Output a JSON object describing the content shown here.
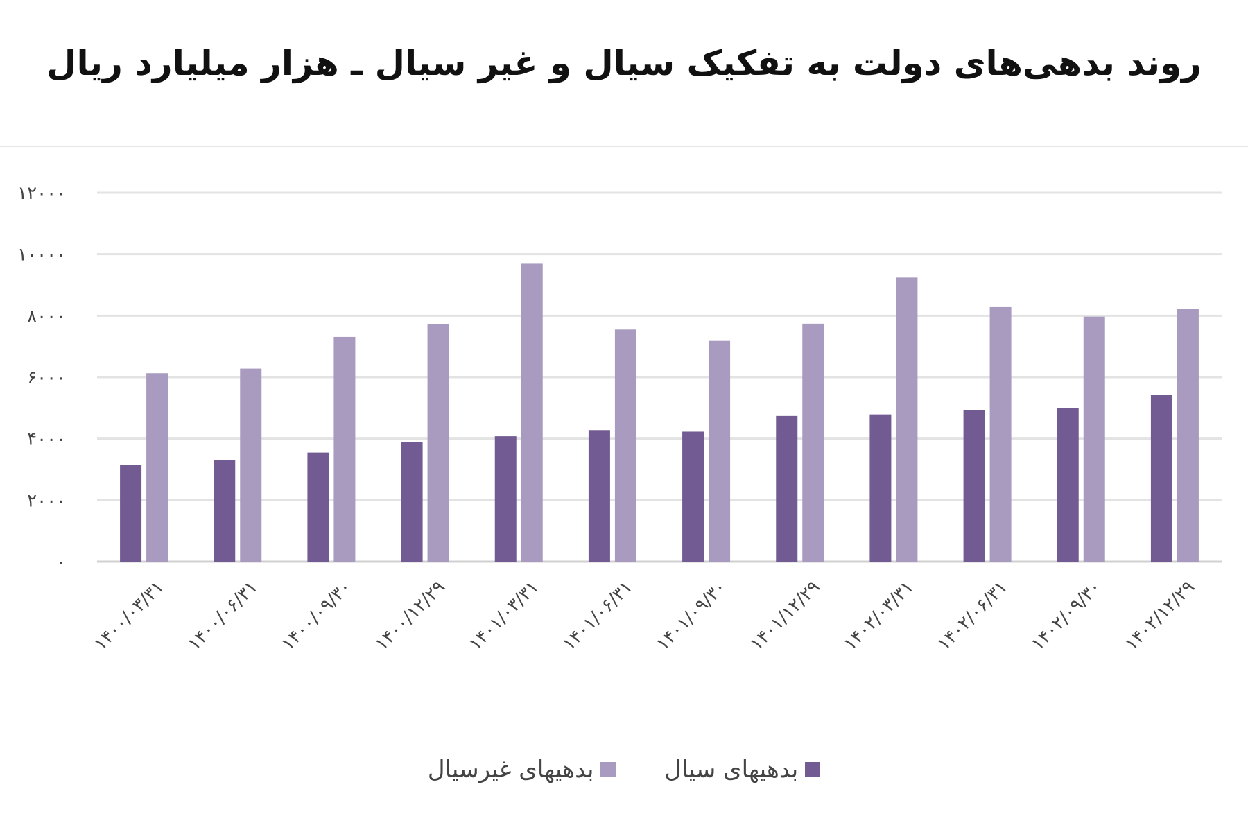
{
  "chart_data": {
    "type": "bar",
    "title": "روند بدهی‌های دولت به تفکیک سیال و غیر سیال ـ هزار میلیارد ریال",
    "categories": [
      "۱۴۰۰/۰۳/۳۱",
      "۱۴۰۰/۰۶/۳۱",
      "۱۴۰۰/۰۹/۳۰",
      "۱۴۰۰/۱۲/۲۹",
      "۱۴۰۱/۰۳/۳۱",
      "۱۴۰۱/۰۶/۳۱",
      "۱۴۰۱/۰۹/۳۰",
      "۱۴۰۱/۱۲/۲۹",
      "۱۴۰۲/۰۳/۳۱",
      "۱۴۰۲/۰۶/۳۱",
      "۱۴۰۲/۰۹/۳۰",
      "۱۴۰۲/۱۲/۲۹"
    ],
    "series": [
      {
        "name": "بدهیهای سیال",
        "color": "#725b92",
        "values": [
          3150,
          3300,
          3550,
          3880,
          4080,
          4280,
          4230,
          4740,
          4790,
          4920,
          4990,
          5420
        ]
      },
      {
        "name": "بدهیهای غیرسیال",
        "color": "#a89bbf",
        "values": [
          6130,
          6280,
          7310,
          7720,
          9690,
          7550,
          7180,
          7740,
          9240,
          8280,
          7970,
          8220
        ]
      }
    ],
    "yticks": [
      "۰",
      "۲۰۰۰",
      "۴۰۰۰",
      "۶۰۰۰",
      "۸۰۰۰",
      "۱۰۰۰۰",
      "۱۲۰۰۰"
    ],
    "ylim": [
      0,
      12000
    ],
    "xlabel": "",
    "ylabel": "",
    "grid": true,
    "legend_position": "bottom"
  }
}
